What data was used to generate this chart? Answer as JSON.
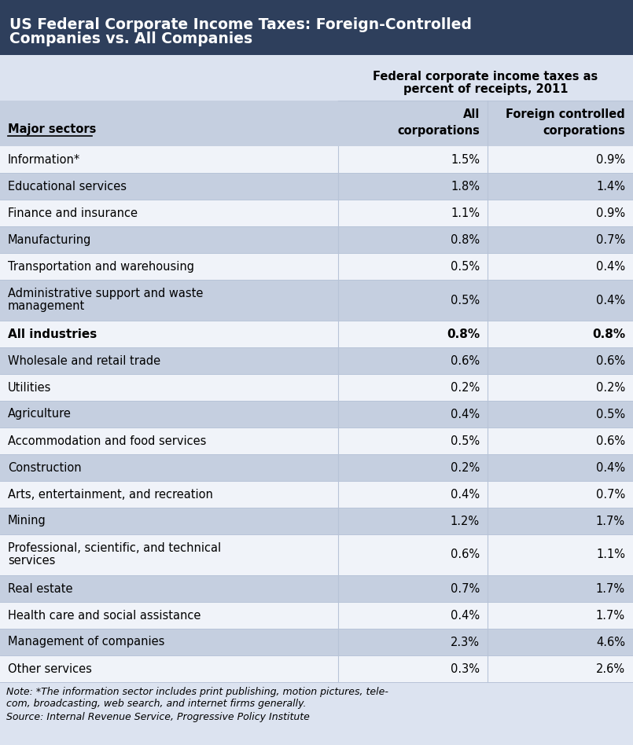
{
  "title_line1": "US Federal Corporate Income Taxes: Foreign-Controlled",
  "title_line2": "Companies vs. All Companies",
  "title_bg_color": "#2e3f5c",
  "title_text_color": "#ffffff",
  "header_bg": "#dce3f0",
  "subheader_bg": "#c5cfe0",
  "col_header_text": "Federal corporate income taxes as\npercent of receipts, 2011",
  "col1_header_line1": "All",
  "col1_header_line2": "corporations",
  "col2_header_line1": "Foreign controlled",
  "col2_header_line2": "corporations",
  "sector_header": "Major sectors",
  "rows": [
    {
      "sector": "Information*",
      "all": "1.5%",
      "foreign": "0.9%",
      "bold": false,
      "bg": "#f0f3f9"
    },
    {
      "sector": "Educational services",
      "all": "1.8%",
      "foreign": "1.4%",
      "bold": false,
      "bg": "#c5cfe0"
    },
    {
      "sector": "Finance and insurance",
      "all": "1.1%",
      "foreign": "0.9%",
      "bold": false,
      "bg": "#f0f3f9"
    },
    {
      "sector": "Manufacturing",
      "all": "0.8%",
      "foreign": "0.7%",
      "bold": false,
      "bg": "#c5cfe0"
    },
    {
      "sector": "Transportation and warehousing",
      "all": "0.5%",
      "foreign": "0.4%",
      "bold": false,
      "bg": "#f0f3f9"
    },
    {
      "sector": "Administrative support and waste\nmanagement",
      "all": "0.5%",
      "foreign": "0.4%",
      "bold": false,
      "bg": "#c5cfe0"
    },
    {
      "sector": "All industries",
      "all": "0.8%",
      "foreign": "0.8%",
      "bold": true,
      "bg": "#f0f3f9"
    },
    {
      "sector": "Wholesale and retail trade",
      "all": "0.6%",
      "foreign": "0.6%",
      "bold": false,
      "bg": "#c5cfe0"
    },
    {
      "sector": "Utilities",
      "all": "0.2%",
      "foreign": "0.2%",
      "bold": false,
      "bg": "#f0f3f9"
    },
    {
      "sector": "Agriculture",
      "all": "0.4%",
      "foreign": "0.5%",
      "bold": false,
      "bg": "#c5cfe0"
    },
    {
      "sector": "Accommodation and food services",
      "all": "0.5%",
      "foreign": "0.6%",
      "bold": false,
      "bg": "#f0f3f9"
    },
    {
      "sector": "Construction",
      "all": "0.2%",
      "foreign": "0.4%",
      "bold": false,
      "bg": "#c5cfe0"
    },
    {
      "sector": "Arts, entertainment, and recreation",
      "all": "0.4%",
      "foreign": "0.7%",
      "bold": false,
      "bg": "#f0f3f9"
    },
    {
      "sector": "Mining",
      "all": "1.2%",
      "foreign": "1.7%",
      "bold": false,
      "bg": "#c5cfe0"
    },
    {
      "sector": "Professional, scientific, and technical\nservices",
      "all": "0.6%",
      "foreign": "1.1%",
      "bold": false,
      "bg": "#f0f3f9"
    },
    {
      "sector": "Real estate",
      "all": "0.7%",
      "foreign": "1.7%",
      "bold": false,
      "bg": "#c5cfe0"
    },
    {
      "sector": "Health care and social assistance",
      "all": "0.4%",
      "foreign": "1.7%",
      "bold": false,
      "bg": "#f0f3f9"
    },
    {
      "sector": "Management of companies",
      "all": "2.3%",
      "foreign": "4.6%",
      "bold": false,
      "bg": "#c5cfe0"
    },
    {
      "sector": "Other services",
      "all": "0.3%",
      "foreign": "2.6%",
      "bold": false,
      "bg": "#f0f3f9"
    }
  ],
  "note_line1": "Note: *The information sector includes print publishing, motion pictures, tele-",
  "note_line2": "com, broadcasting, web search, and internet firms generally.",
  "source_line": "Source: Internal Revenue Service, Progressive Policy Institute",
  "bg_color": "#dce3f0",
  "row_line_color": "#b8c4d8",
  "divider_color": "#b8c4d8"
}
